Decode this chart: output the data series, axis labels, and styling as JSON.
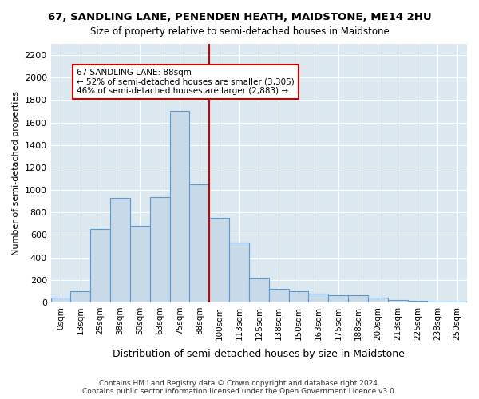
{
  "title1": "67, SANDLING LANE, PENENDEN HEATH, MAIDSTONE, ME14 2HU",
  "title2": "Size of property relative to semi-detached houses in Maidstone",
  "xlabel": "Distribution of semi-detached houses by size in Maidstone",
  "ylabel": "Number of semi-detached properties",
  "footnote": "Contains HM Land Registry data © Crown copyright and database right 2024.\nContains public sector information licensed under the Open Government Licence v3.0.",
  "annotation_title": "67 SANDLING LANE: 88sqm",
  "annotation_line1": "← 52% of semi-detached houses are smaller (3,305)",
  "annotation_line2": "46% of semi-detached houses are larger (2,883) →",
  "bar_color": "#c8d9e8",
  "bar_edge_color": "#5b9bd5",
  "vline_color": "#cc0000",
  "annotation_box_edge": "#cc0000",
  "background_color": "#dce8f0",
  "categories": [
    "0sqm",
    "13sqm",
    "25sqm",
    "38sqm",
    "50sqm",
    "63sqm",
    "75sqm",
    "88sqm",
    "100sqm",
    "113sqm",
    "125sqm",
    "138sqm",
    "150sqm",
    "163sqm",
    "175sqm",
    "188sqm",
    "200sqm",
    "213sqm",
    "225sqm",
    "238sqm",
    "250sqm"
  ],
  "values": [
    40,
    100,
    650,
    930,
    680,
    940,
    1700,
    1050,
    750,
    530,
    220,
    120,
    100,
    80,
    65,
    60,
    40,
    20,
    10,
    5,
    5
  ],
  "ylim": [
    0,
    2300
  ],
  "yticks": [
    0,
    200,
    400,
    600,
    800,
    1000,
    1200,
    1400,
    1600,
    1800,
    2000,
    2200
  ]
}
